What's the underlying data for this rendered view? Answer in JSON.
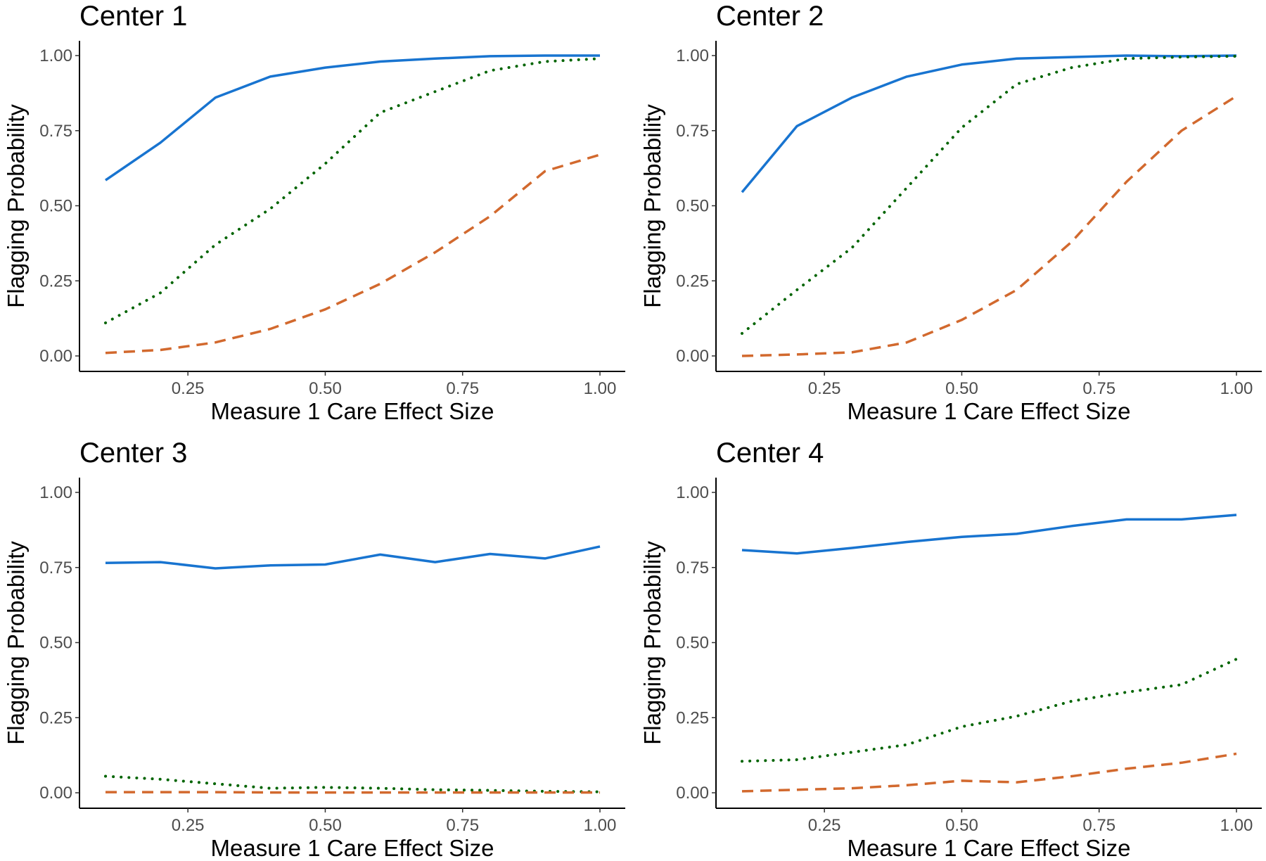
{
  "chart_data": [
    {
      "type": "line",
      "title": "Center 1",
      "xlabel": "Measure 1 Care Effect Size",
      "ylabel": "Flagging Probability",
      "xlim": [
        0.1,
        1.0
      ],
      "ylim": [
        0,
        1
      ],
      "xticks": [
        "0.25",
        "0.50",
        "0.75",
        "1.00"
      ],
      "yticks": [
        "0.00",
        "0.25",
        "0.50",
        "0.75",
        "1.00"
      ],
      "x": [
        0.1,
        0.2,
        0.3,
        0.4,
        0.5,
        0.6,
        0.7,
        0.8,
        0.9,
        1.0
      ],
      "series": [
        {
          "name": "solid",
          "color": "#1874D0",
          "style": "solid",
          "values": [
            0.585,
            0.71,
            0.86,
            0.93,
            0.96,
            0.98,
            0.99,
            0.998,
            1.0,
            1.0
          ]
        },
        {
          "name": "dotted",
          "color": "#006400",
          "style": "dotted",
          "values": [
            0.11,
            0.21,
            0.37,
            0.49,
            0.64,
            0.81,
            0.88,
            0.95,
            0.98,
            0.99
          ]
        },
        {
          "name": "dashed",
          "color": "#D2692E",
          "style": "dashed",
          "values": [
            0.01,
            0.02,
            0.045,
            0.09,
            0.155,
            0.24,
            0.345,
            0.465,
            0.615,
            0.67
          ]
        }
      ]
    },
    {
      "type": "line",
      "title": "Center 2",
      "xlabel": "Measure 1 Care Effect Size",
      "ylabel": "Flagging Probability",
      "xlim": [
        0.1,
        1.0
      ],
      "ylim": [
        0,
        1
      ],
      "xticks": [
        "0.25",
        "0.50",
        "0.75",
        "1.00"
      ],
      "yticks": [
        "0.00",
        "0.25",
        "0.50",
        "0.75",
        "1.00"
      ],
      "x": [
        0.1,
        0.2,
        0.3,
        0.4,
        0.5,
        0.6,
        0.7,
        0.8,
        0.9,
        1.0
      ],
      "series": [
        {
          "name": "solid",
          "color": "#1874D0",
          "style": "solid",
          "values": [
            0.545,
            0.765,
            0.86,
            0.93,
            0.97,
            0.99,
            0.995,
            1.0,
            0.998,
            1.0
          ]
        },
        {
          "name": "dotted",
          "color": "#006400",
          "style": "dotted",
          "values": [
            0.075,
            0.22,
            0.36,
            0.56,
            0.76,
            0.905,
            0.96,
            0.99,
            0.995,
            0.998
          ]
        },
        {
          "name": "dashed",
          "color": "#D2692E",
          "style": "dashed",
          "values": [
            0.0,
            0.005,
            0.012,
            0.045,
            0.12,
            0.22,
            0.38,
            0.58,
            0.75,
            0.865
          ]
        }
      ]
    },
    {
      "type": "line",
      "title": "Center 3",
      "xlabel": "Measure 1 Care Effect Size",
      "ylabel": "Flagging Probability",
      "xlim": [
        0.1,
        1.0
      ],
      "ylim": [
        0,
        1
      ],
      "xticks": [
        "0.25",
        "0.50",
        "0.75",
        "1.00"
      ],
      "yticks": [
        "0.00",
        "0.25",
        "0.50",
        "0.75",
        "1.00"
      ],
      "x": [
        0.1,
        0.2,
        0.3,
        0.4,
        0.5,
        0.6,
        0.7,
        0.8,
        0.9,
        1.0
      ],
      "series": [
        {
          "name": "solid",
          "color": "#1874D0",
          "style": "solid",
          "values": [
            0.765,
            0.768,
            0.747,
            0.757,
            0.76,
            0.793,
            0.768,
            0.795,
            0.78,
            0.82
          ]
        },
        {
          "name": "dotted",
          "color": "#006400",
          "style": "dotted",
          "values": [
            0.055,
            0.045,
            0.03,
            0.015,
            0.018,
            0.015,
            0.01,
            0.008,
            0.005,
            0.003
          ]
        },
        {
          "name": "dashed",
          "color": "#D2692E",
          "style": "dashed",
          "values": [
            0.002,
            0.002,
            0.002,
            0.001,
            0.001,
            0.001,
            0.001,
            0.001,
            0.001,
            0.001
          ]
        }
      ]
    },
    {
      "type": "line",
      "title": "Center 4",
      "xlabel": "Measure 1 Care Effect Size",
      "ylabel": "Flagging Probability",
      "xlim": [
        0.1,
        1.0
      ],
      "ylim": [
        0,
        1
      ],
      "xticks": [
        "0.25",
        "0.50",
        "0.75",
        "1.00"
      ],
      "yticks": [
        "0.00",
        "0.25",
        "0.50",
        "0.75",
        "1.00"
      ],
      "x": [
        0.1,
        0.2,
        0.3,
        0.4,
        0.5,
        0.6,
        0.7,
        0.8,
        0.9,
        1.0
      ],
      "series": [
        {
          "name": "solid",
          "color": "#1874D0",
          "style": "solid",
          "values": [
            0.808,
            0.797,
            0.815,
            0.835,
            0.852,
            0.862,
            0.888,
            0.91,
            0.91,
            0.925
          ]
        },
        {
          "name": "dotted",
          "color": "#006400",
          "style": "dotted",
          "values": [
            0.105,
            0.11,
            0.135,
            0.16,
            0.22,
            0.255,
            0.305,
            0.335,
            0.36,
            0.445
          ]
        },
        {
          "name": "dashed",
          "color": "#D2692E",
          "style": "dashed",
          "values": [
            0.005,
            0.01,
            0.015,
            0.025,
            0.04,
            0.035,
            0.055,
            0.08,
            0.1,
            0.13
          ]
        }
      ]
    }
  ]
}
